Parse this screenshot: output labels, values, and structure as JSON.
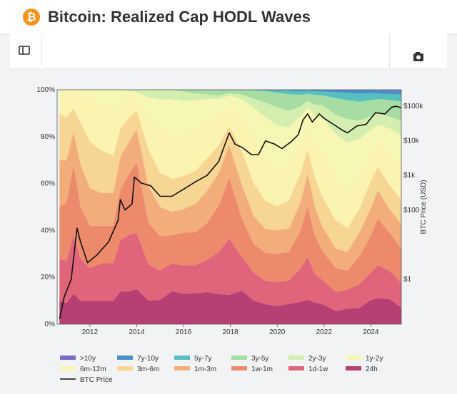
{
  "header": {
    "title": "Bitcoin: Realized Cap HODL Waves",
    "icon": "bitcoin-icon",
    "icon_glyph": "₿"
  },
  "toolbar": {
    "sidebar_icon": "sidebar-toggle-icon",
    "camera_icon": "camera-icon"
  },
  "colors": {
    "bands": [
      "#7b6bc0",
      "#4a8fc9",
      "#56c0bf",
      "#a7dca3",
      "#d4eeb0",
      "#f7f7b5",
      "#fbf3b0",
      "#f7d593",
      "#f3ad7b",
      "#ec8a6b",
      "#e0657a",
      "#b83f73"
    ],
    "price_line": "#111111"
  },
  "chart_data": {
    "type": "area",
    "x": [
      2010.7,
      2011.0,
      2011.3,
      2011.6,
      2012.0,
      2012.5,
      2013.0,
      2013.3,
      2013.7,
      2014.0,
      2014.5,
      2015.0,
      2015.5,
      2016.0,
      2016.5,
      2017.0,
      2017.5,
      2017.95,
      2018.5,
      2019.0,
      2019.5,
      2020.0,
      2020.5,
      2021.0,
      2021.3,
      2021.6,
      2021.9,
      2022.5,
      2023.0,
      2023.5,
      2024.0,
      2024.3,
      2024.8,
      2025.3
    ],
    "series": [
      {
        "name": ">10y",
        "values": [
          0,
          0,
          0,
          0,
          0,
          0,
          0,
          0,
          0,
          0,
          0,
          0,
          0,
          0,
          0,
          0,
          0,
          0,
          0,
          0,
          0,
          0,
          0,
          0,
          0,
          0,
          0,
          0,
          0,
          0,
          0,
          0.2,
          0.3,
          0.4
        ]
      },
      {
        "name": "7y-10y",
        "values": [
          0,
          0,
          0,
          0,
          0,
          0,
          0,
          0,
          0,
          0,
          0,
          0,
          0,
          0,
          0,
          0,
          0,
          0,
          0,
          0,
          0,
          0.3,
          0.4,
          0.5,
          0.5,
          0.6,
          0.7,
          1.0,
          1.4,
          1.6,
          1.5,
          1.4,
          1.5,
          1.6
        ]
      },
      {
        "name": "5y-7y",
        "values": [
          0,
          0,
          0,
          0,
          0,
          0,
          0,
          0,
          0,
          0,
          0,
          0,
          0,
          0,
          0,
          0,
          0,
          0,
          0,
          0.3,
          0.5,
          1.0,
          1.5,
          1.6,
          1.2,
          1.5,
          1.5,
          2.5,
          3.0,
          3.5,
          3.0,
          2.4,
          2.5,
          2.8
        ]
      },
      {
        "name": "3y-5y",
        "values": [
          0,
          0,
          0,
          0,
          0,
          0,
          0,
          0,
          0,
          0,
          0,
          0,
          0,
          0.8,
          1.5,
          2,
          2.5,
          1.5,
          2.0,
          3.5,
          5,
          6,
          7,
          5,
          3,
          4,
          4,
          7,
          8,
          8,
          7,
          6,
          7,
          8
        ]
      },
      {
        "name": "2y-3y",
        "values": [
          0,
          0,
          0,
          0,
          0,
          0,
          0,
          0,
          0.5,
          1,
          3,
          4,
          4,
          4,
          3,
          2,
          1.5,
          1,
          2,
          4,
          6,
          8,
          7,
          4,
          3,
          4,
          5,
          8,
          10,
          8,
          6,
          5,
          5,
          6
        ]
      },
      {
        "name": "1y-2y",
        "values": [
          0,
          0,
          0,
          2,
          4,
          6,
          8,
          5,
          3,
          2,
          6,
          12,
          16,
          14,
          12,
          10,
          8,
          5,
          6,
          12,
          18,
          18,
          15,
          10,
          8,
          12,
          14,
          18,
          20,
          16,
          10,
          8,
          10,
          12
        ]
      },
      {
        "name": "6m-12m",
        "values": [
          10,
          12,
          8,
          12,
          18,
          20,
          20,
          12,
          8,
          6,
          14,
          18,
          18,
          18,
          18,
          16,
          12,
          8,
          16,
          20,
          18,
          16,
          16,
          14,
          10,
          14,
          18,
          18,
          16,
          14,
          12,
          10,
          14,
          14
        ]
      },
      {
        "name": "3m-6m",
        "values": [
          20,
          18,
          10,
          18,
          20,
          18,
          16,
          12,
          10,
          8,
          14,
          14,
          14,
          14,
          14,
          14,
          12,
          8,
          14,
          14,
          12,
          10,
          12,
          12,
          10,
          12,
          12,
          12,
          10,
          10,
          12,
          10,
          10,
          10
        ]
      },
      {
        "name": "1m-3m",
        "values": [
          20,
          18,
          14,
          18,
          16,
          14,
          14,
          14,
          14,
          14,
          14,
          12,
          10,
          10,
          12,
          14,
          14,
          14,
          14,
          12,
          10,
          10,
          10,
          12,
          14,
          12,
          10,
          8,
          8,
          10,
          12,
          12,
          10,
          10
        ]
      },
      {
        "name": "1w-1m",
        "values": [
          22,
          25,
          30,
          22,
          18,
          16,
          16,
          22,
          26,
          30,
          16,
          14,
          12,
          14,
          14,
          16,
          20,
          26,
          16,
          12,
          12,
          12,
          12,
          16,
          22,
          16,
          12,
          10,
          8,
          12,
          16,
          20,
          16,
          14
        ]
      },
      {
        "name": "1d-1w",
        "values": [
          18,
          18,
          25,
          18,
          14,
          16,
          16,
          22,
          24,
          24,
          14,
          12,
          12,
          12,
          12,
          14,
          18,
          24,
          14,
          12,
          10,
          10,
          10,
          14,
          18,
          12,
          10,
          8,
          8,
          10,
          12,
          14,
          12,
          10
        ]
      },
      {
        "name": "24h",
        "values": [
          10,
          9,
          13,
          10,
          10,
          10,
          10,
          14,
          14,
          15,
          9,
          10,
          14,
          13,
          13,
          14,
          13,
          12.5,
          14,
          10,
          8.5,
          7.7,
          8.6,
          9.4,
          10.5,
          8.9,
          8.3,
          5.5,
          6.6,
          6.9,
          10.5,
          11.1,
          10.5,
          6.8
        ]
      }
    ],
    "price": {
      "name": "BTC Price",
      "x": [
        2010.7,
        2010.9,
        2011.2,
        2011.45,
        2011.6,
        2011.9,
        2012.3,
        2012.8,
        2013.2,
        2013.3,
        2013.5,
        2013.8,
        2013.9,
        2014.2,
        2014.6,
        2015.0,
        2015.5,
        2016.0,
        2016.5,
        2017.0,
        2017.5,
        2017.95,
        2018.2,
        2018.5,
        2018.9,
        2019.2,
        2019.5,
        2019.9,
        2020.2,
        2020.6,
        2020.9,
        2021.1,
        2021.3,
        2021.5,
        2021.8,
        2022.0,
        2022.4,
        2022.8,
        2023.0,
        2023.4,
        2023.8,
        2024.0,
        2024.2,
        2024.6,
        2024.9,
        2025.1,
        2025.3
      ],
      "values": [
        0.07,
        0.3,
        1,
        30,
        12,
        3,
        5,
        12,
        50,
        200,
        100,
        150,
        900,
        600,
        500,
        250,
        250,
        400,
        650,
        1000,
        2500,
        17000,
        8000,
        6500,
        4000,
        4000,
        10000,
        8000,
        6000,
        9500,
        15000,
        40000,
        60000,
        35000,
        60000,
        45000,
        30000,
        20000,
        17000,
        27000,
        30000,
        45000,
        65000,
        60000,
        95000,
        100000,
        90000
      ]
    },
    "xlim": [
      2010.6,
      2025.3
    ],
    "ylim": [
      0,
      100
    ],
    "y_ticks": [
      "0%",
      "20%",
      "40%",
      "60%",
      "80%",
      "100%"
    ],
    "x_ticks": [
      "2012",
      "2014",
      "2016",
      "2018",
      "2020",
      "2022",
      "2024"
    ],
    "x_tick_values": [
      2012,
      2014,
      2016,
      2018,
      2020,
      2022,
      2024
    ],
    "y2_ticks": [
      "$1",
      "$100",
      "$1k",
      "$10k",
      "$100k"
    ],
    "y2_tick_values": [
      1,
      100,
      1000,
      10000,
      100000
    ],
    "y2_log": true,
    "y2_range": [
      0.05,
      300000
    ],
    "y2label": "BTC Price (USD)",
    "legend_position": "bottom",
    "legend": [
      ">10y",
      "7y-10y",
      "5y-7y",
      "3y-5y",
      "2y-3y",
      "1y-2y",
      "6m-12m",
      "3m-6m",
      "1m-3m",
      "1w-1m",
      "1d-1w",
      "24h",
      "BTC Price"
    ]
  }
}
